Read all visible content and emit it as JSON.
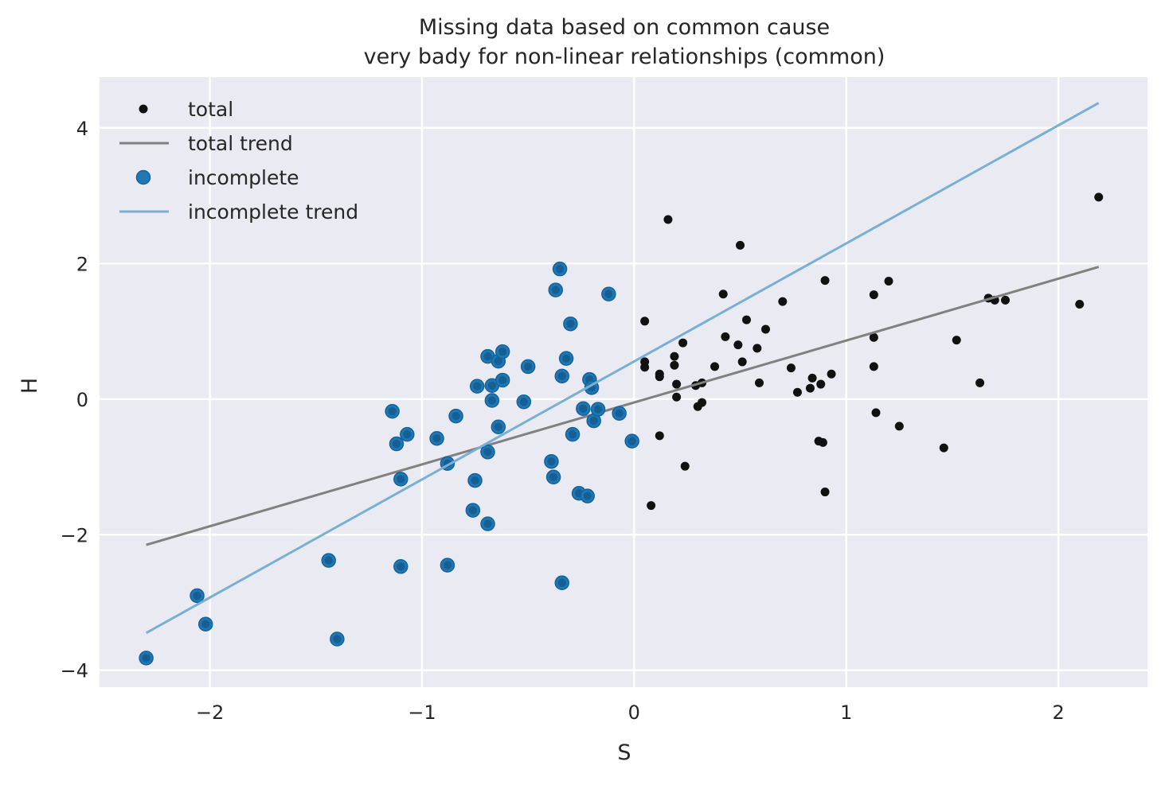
{
  "chart_data": {
    "type": "scatter",
    "title": "Missing data based on common cause",
    "subtitle": "very bady for non-linear relationships (common)",
    "xlabel": "S",
    "ylabel": "H",
    "xlim": [
      -2.52,
      2.42
    ],
    "ylim": [
      -4.25,
      4.75
    ],
    "xticks": [
      -2,
      -1,
      0,
      1,
      2
    ],
    "yticks": [
      -4,
      -2,
      0,
      2,
      4
    ],
    "xtick_labels": [
      "−2",
      "−1",
      "0",
      "1",
      "2"
    ],
    "ytick_labels": [
      "−4",
      "−2",
      "0",
      "2",
      "4"
    ],
    "grid": true,
    "legend_position": "upper-left",
    "colors": {
      "background": "#eaeaf2",
      "grid": "#ffffff",
      "total": "#111111",
      "total_trend": "#808080",
      "incomplete": "#1f77b4",
      "incomplete_edge": "#15639a",
      "incomplete_trend": "#79afd3"
    },
    "series": [
      {
        "name": "total",
        "kind": "scatter",
        "points": [
          [
            0.05,
            1.15
          ],
          [
            0.05,
            0.55
          ],
          [
            0.05,
            0.47
          ],
          [
            0.08,
            -1.57
          ],
          [
            0.12,
            -0.54
          ],
          [
            0.12,
            0.37
          ],
          [
            0.12,
            0.33
          ],
          [
            0.16,
            2.65
          ],
          [
            0.19,
            0.63
          ],
          [
            0.19,
            0.5
          ],
          [
            0.2,
            0.22
          ],
          [
            0.2,
            0.03
          ],
          [
            0.23,
            0.83
          ],
          [
            0.24,
            -0.99
          ],
          [
            0.29,
            0.2
          ],
          [
            0.3,
            -0.11
          ],
          [
            0.32,
            0.24
          ],
          [
            0.32,
            -0.05
          ],
          [
            0.38,
            0.48
          ],
          [
            0.42,
            1.55
          ],
          [
            0.43,
            0.92
          ],
          [
            0.49,
            0.8
          ],
          [
            0.5,
            2.27
          ],
          [
            0.51,
            0.55
          ],
          [
            0.53,
            1.17
          ],
          [
            0.58,
            0.75
          ],
          [
            0.59,
            0.24
          ],
          [
            0.62,
            1.03
          ],
          [
            0.7,
            1.44
          ],
          [
            0.74,
            0.46
          ],
          [
            0.77,
            0.1
          ],
          [
            0.83,
            0.16
          ],
          [
            0.84,
            0.31
          ],
          [
            0.87,
            -0.62
          ],
          [
            0.88,
            0.22
          ],
          [
            0.89,
            -0.64
          ],
          [
            0.9,
            -1.37
          ],
          [
            0.9,
            1.75
          ],
          [
            0.93,
            0.37
          ],
          [
            1.13,
            1.54
          ],
          [
            1.13,
            0.91
          ],
          [
            1.13,
            0.48
          ],
          [
            1.14,
            -0.2
          ],
          [
            1.2,
            1.74
          ],
          [
            1.25,
            -0.4
          ],
          [
            1.46,
            -0.72
          ],
          [
            1.52,
            0.87
          ],
          [
            1.63,
            0.24
          ],
          [
            1.67,
            1.49
          ],
          [
            1.7,
            1.46
          ],
          [
            1.75,
            1.46
          ],
          [
            2.1,
            1.4
          ],
          [
            2.19,
            2.98
          ]
        ]
      },
      {
        "name": "total trend",
        "kind": "line",
        "x": [
          -2.3,
          2.19
        ],
        "y": [
          -2.15,
          1.95
        ]
      },
      {
        "name": "incomplete",
        "kind": "scatter",
        "points": [
          [
            -2.3,
            -3.82
          ],
          [
            -2.06,
            -2.9
          ],
          [
            -2.02,
            -3.32
          ],
          [
            -1.44,
            -2.38
          ],
          [
            -1.4,
            -3.54
          ],
          [
            -1.14,
            -0.18
          ],
          [
            -1.12,
            -0.66
          ],
          [
            -1.1,
            -1.18
          ],
          [
            -1.1,
            -2.47
          ],
          [
            -1.07,
            -0.52
          ],
          [
            -0.93,
            -0.58
          ],
          [
            -0.88,
            -0.95
          ],
          [
            -0.88,
            -2.45
          ],
          [
            -0.84,
            -0.25
          ],
          [
            -0.76,
            -1.64
          ],
          [
            -0.75,
            -1.2
          ],
          [
            -0.74,
            0.19
          ],
          [
            -0.69,
            0.63
          ],
          [
            -0.69,
            -0.78
          ],
          [
            -0.69,
            -1.84
          ],
          [
            -0.67,
            0.2
          ],
          [
            -0.67,
            -0.02
          ],
          [
            -0.64,
            0.56
          ],
          [
            -0.64,
            -0.41
          ],
          [
            -0.62,
            0.7
          ],
          [
            -0.62,
            0.28
          ],
          [
            -0.52,
            -0.04
          ],
          [
            -0.5,
            0.48
          ],
          [
            -0.39,
            -0.92
          ],
          [
            -0.38,
            -1.15
          ],
          [
            -0.37,
            1.61
          ],
          [
            -0.35,
            1.92
          ],
          [
            -0.34,
            0.34
          ],
          [
            -0.34,
            -2.71
          ],
          [
            -0.32,
            0.6
          ],
          [
            -0.3,
            1.11
          ],
          [
            -0.29,
            -0.52
          ],
          [
            -0.26,
            -1.39
          ],
          [
            -0.24,
            -0.14
          ],
          [
            -0.22,
            -1.43
          ],
          [
            -0.21,
            0.29
          ],
          [
            -0.2,
            0.17
          ],
          [
            -0.19,
            -0.32
          ],
          [
            -0.17,
            -0.15
          ],
          [
            -0.12,
            1.55
          ],
          [
            -0.07,
            -0.21
          ],
          [
            -0.01,
            -0.62
          ]
        ]
      },
      {
        "name": "incomplete trend",
        "kind": "line",
        "x": [
          -2.3,
          2.19
        ],
        "y": [
          -3.45,
          4.37
        ]
      }
    ]
  }
}
